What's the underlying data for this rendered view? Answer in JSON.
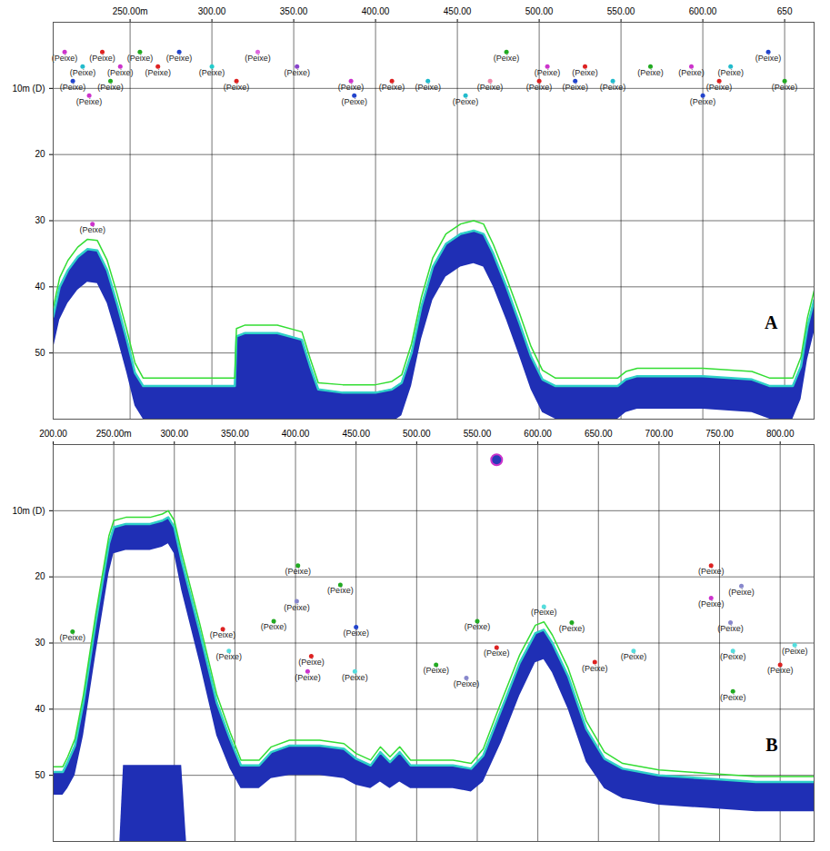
{
  "chart_data": [
    {
      "type": "echogram",
      "label": "A",
      "grid": true,
      "xlim": [
        203,
        668
      ],
      "xticks": [
        {
          "value": 250,
          "label": "250.00m"
        },
        {
          "value": 300,
          "label": "300.00"
        },
        {
          "value": 350,
          "label": "350.00"
        },
        {
          "value": 400,
          "label": "400.00"
        },
        {
          "value": 450,
          "label": "450.00"
        },
        {
          "value": 500,
          "label": "500.00"
        },
        {
          "value": 550,
          "label": "550.00"
        },
        {
          "value": 600,
          "label": "600.00"
        },
        {
          "value": 650,
          "label": "650"
        }
      ],
      "ylim": [
        0,
        60
      ],
      "yticks": [
        {
          "value": 10,
          "label": "10m (D)"
        },
        20,
        30,
        40,
        50
      ],
      "seabed": {
        "color": "#1f2fb5",
        "x": [
          203,
          207,
          212,
          218,
          224,
          230,
          236,
          242,
          248,
          253,
          258,
          280,
          300,
          314,
          315,
          320,
          340,
          355,
          360,
          365,
          380,
          400,
          410,
          416,
          422,
          428,
          435,
          443,
          452,
          460,
          466,
          472,
          480,
          488,
          495,
          502,
          510,
          530,
          548,
          553,
          560,
          600,
          630,
          641,
          655,
          660,
          664,
          668
        ],
        "top": [
          44.5,
          40,
          37.5,
          35.5,
          34.3,
          34.5,
          37.5,
          42.5,
          48,
          53,
          55,
          55,
          55,
          55,
          47.5,
          47,
          47,
          48,
          52,
          55.5,
          56,
          56,
          55.5,
          54.5,
          50,
          43,
          37,
          33.5,
          32,
          31.5,
          32,
          35,
          40,
          45.5,
          50.5,
          54,
          55,
          55,
          55,
          54,
          53.5,
          53.5,
          54,
          55,
          55,
          52,
          46,
          42
        ],
        "bottom": [
          49.5,
          45,
          42.5,
          40.5,
          39.3,
          39.5,
          42.5,
          47.5,
          53,
          58,
          60,
          60,
          60,
          60,
          60,
          60,
          60,
          60,
          60,
          60.5,
          61,
          61,
          60.5,
          59.5,
          55,
          48,
          42,
          38.5,
          37,
          36.5,
          37,
          40,
          45,
          50.5,
          55.5,
          59,
          60,
          60,
          60,
          59,
          58.5,
          58.5,
          59,
          60,
          60,
          57,
          51,
          47
        ]
      },
      "bottom_line": {
        "color": "#33dd33",
        "depth": [
          43.2,
          38.6,
          36,
          34,
          32.8,
          33,
          36,
          41,
          46.5,
          51.5,
          53.8,
          53.8,
          53.8,
          53.8,
          46.3,
          45.8,
          45.8,
          46.8,
          50.8,
          54.5,
          54.8,
          54.8,
          54.3,
          53.3,
          48.6,
          41.6,
          35.6,
          32,
          30.5,
          30,
          30.5,
          33.6,
          38.6,
          44,
          49,
          52.6,
          53.8,
          53.8,
          53.8,
          52.8,
          52.3,
          52.3,
          52.8,
          53.8,
          53.8,
          50.6,
          44.6,
          40.6
        ]
      },
      "fish": {
        "label": "(Peixe)",
        "x": [
          210,
          233,
          256,
          280,
          328,
          480,
          640,
          221,
          244,
          267,
          300,
          352,
          505,
          528,
          568,
          593,
          617,
          215,
          238,
          315,
          385,
          410,
          432,
          470,
          500,
          522,
          545,
          610,
          650,
          225,
          387,
          455,
          600,
          227
        ],
        "depth": [
          4.5,
          4.5,
          4.5,
          4.5,
          4.5,
          4.5,
          4.5,
          6.7,
          6.7,
          6.7,
          6.7,
          6.7,
          6.7,
          6.7,
          6.7,
          6.7,
          6.7,
          8.9,
          8.9,
          8.9,
          8.9,
          8.9,
          8.9,
          8.9,
          8.9,
          8.9,
          8.9,
          8.9,
          8.9,
          11.1,
          11.1,
          11.1,
          11.1,
          30.5
        ],
        "colors": [
          "#cc33cc",
          "#dd2222",
          "#22aa22",
          "#2244cc",
          "#dd66dd",
          "#22aa22",
          "#2244cc",
          "#22bbcc",
          "#cc33cc",
          "#dd2222",
          "#22cccc",
          "#8844cc",
          "#cc33cc",
          "#dd2222",
          "#22aa22",
          "#cc33cc",
          "#22bbcc",
          "#2244cc",
          "#22aa22",
          "#dd2222",
          "#cc33cc",
          "#dd2222",
          "#22bbcc",
          "#ee88aa",
          "#dd2222",
          "#2244cc",
          "#22bbcc",
          "#dd2222",
          "#22aa22",
          "#cc33cc",
          "#2244cc",
          "#22bbcc",
          "#2244cc",
          "#cc33cc"
        ]
      }
    },
    {
      "type": "echogram",
      "label": "B",
      "grid": true,
      "xlim": [
        200,
        828
      ],
      "xticks": [
        {
          "value": 200,
          "label": "200.00"
        },
        {
          "value": 250,
          "label": "250.00m"
        },
        {
          "value": 300,
          "label": "300.00"
        },
        {
          "value": 350,
          "label": "350.00"
        },
        {
          "value": 400,
          "label": "400.00"
        },
        {
          "value": 450,
          "label": "450.00"
        },
        {
          "value": 500,
          "label": "500.00"
        },
        {
          "value": 550,
          "label": "550.00"
        },
        {
          "value": 600,
          "label": "600.00"
        },
        {
          "value": 650,
          "label": "650.00"
        },
        {
          "value": 700,
          "label": "700.00"
        },
        {
          "value": 750,
          "label": "750.00"
        },
        {
          "value": 800,
          "label": "800.00"
        }
      ],
      "ylim": [
        0,
        60
      ],
      "yticks": [
        {
          "value": 10,
          "label": "10m (D)"
        },
        20,
        30,
        40,
        50
      ],
      "seabed": {
        "color": "#1f2fb5",
        "x": [
          200,
          208,
          212,
          218,
          225,
          235,
          246,
          250,
          260,
          280,
          290,
          295,
          300,
          306,
          321,
          335,
          346,
          355,
          370,
          380,
          395,
          420,
          440,
          450,
          462,
          470,
          478,
          486,
          495,
          510,
          530,
          545,
          555,
          570,
          585,
          598,
          605,
          612,
          625,
          640,
          655,
          670,
          700,
          740,
          780,
          828
        ],
        "top": [
          49.5,
          49.5,
          48,
          45.5,
          39,
          27,
          15,
          12.5,
          12,
          12,
          11.5,
          11,
          12.5,
          17.5,
          28.3,
          39,
          44.5,
          48.5,
          48.5,
          46.5,
          45.5,
          45.5,
          46,
          47.5,
          48.5,
          46.5,
          48,
          46.5,
          48.5,
          48.5,
          48.5,
          49,
          47,
          40,
          33,
          28.5,
          28,
          30,
          35,
          43,
          47.5,
          49,
          50,
          50.5,
          51,
          51
        ],
        "bottom": [
          53,
          53,
          52,
          50,
          44,
          32,
          19.5,
          16.5,
          16,
          16,
          15.5,
          15,
          16.5,
          22,
          33,
          44,
          49,
          52,
          52,
          50.5,
          50,
          50,
          50.5,
          51.5,
          52,
          51,
          52,
          51,
          52,
          52,
          52,
          52.5,
          51,
          45,
          38,
          33,
          32.5,
          34.5,
          40,
          48,
          52,
          53.5,
          54.5,
          55,
          55.5,
          55.5
        ]
      },
      "bottom_line": {
        "color": "#33dd33",
        "depth": [
          48.7,
          48.7,
          47.2,
          44.5,
          37.8,
          25.8,
          13.8,
          11.5,
          11,
          11,
          10.5,
          10,
          11.5,
          16.3,
          27.1,
          37.8,
          43.5,
          47.7,
          47.7,
          45.7,
          44.7,
          44.7,
          45.2,
          46.7,
          47.7,
          45.7,
          47.2,
          45.7,
          47.7,
          47.7,
          47.7,
          48.2,
          46,
          38.8,
          31.8,
          27.3,
          26.8,
          28.8,
          33.8,
          41.8,
          46.5,
          48.2,
          49.2,
          49.7,
          50.2,
          50.2
        ]
      },
      "second_echo": {
        "color": "#1f2fb5",
        "x": [
          255,
          258,
          306,
          310
        ],
        "top": [
          60,
          48.5,
          48.5,
          60
        ]
      },
      "school": {
        "color": "#2a3ab8",
        "x": 566,
        "depth": 2.3
      },
      "fish": {
        "label": "(Peixe)",
        "x": [
          216,
          340,
          345,
          382,
          402,
          401,
          437,
          450,
          413,
          410,
          449,
          516,
          541,
          550,
          566,
          605,
          628,
          647,
          679,
          743,
          743,
          768,
          759,
          761,
          800,
          761,
          812
        ],
        "depth": [
          28.3,
          27.9,
          31.2,
          26.7,
          18.3,
          23.7,
          21.2,
          27.6,
          32,
          34.3,
          34.3,
          33.3,
          35.3,
          26.7,
          30.7,
          24.5,
          26.9,
          32.9,
          31.2,
          18.3,
          23.2,
          21.4,
          26.9,
          31.2,
          33.3,
          37.3,
          30.3
        ],
        "colors": [
          "#22aa22",
          "#dd2222",
          "#55dddd",
          "#22aa22",
          "#22aa22",
          "#8888cc",
          "#22aa22",
          "#2244cc",
          "#dd2222",
          "#cc33cc",
          "#55dddd",
          "#22aa22",
          "#8888cc",
          "#22aa22",
          "#dd2222",
          "#55dddd",
          "#22aa22",
          "#dd2222",
          "#55dddd",
          "#dd2222",
          "#cc33cc",
          "#8888cc",
          "#8888cc",
          "#55dddd",
          "#dd2222",
          "#22aa22",
          "#55dddd"
        ]
      }
    }
  ]
}
